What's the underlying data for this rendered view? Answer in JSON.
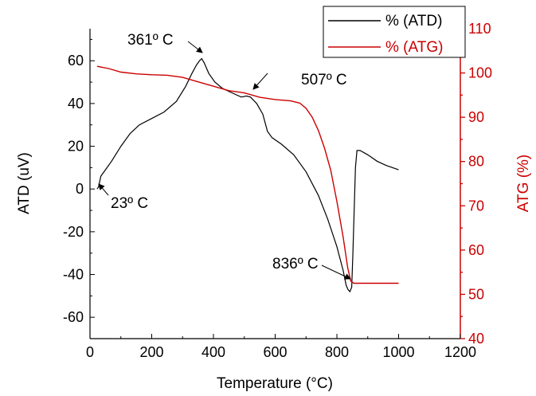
{
  "chart_data": {
    "type": "line",
    "title": "",
    "xlabel": "Temperature (°C)",
    "ylabel_left": "ATD (uV)",
    "ylabel_right": "ATG (%)",
    "xlim": [
      0,
      1200
    ],
    "ylim_left": [
      -70,
      75
    ],
    "ylim_right": [
      40,
      110
    ],
    "x_ticks": [
      "0",
      "200",
      "400",
      "600",
      "800",
      "1000",
      "1200"
    ],
    "y_left_ticks": [
      "-60",
      "-40",
      "-20",
      "0",
      "20",
      "40",
      "60"
    ],
    "y_right_ticks": [
      "40",
      "50",
      "60",
      "70",
      "80",
      "90",
      "100",
      "110"
    ],
    "grid": false,
    "legend_position": "top-right",
    "series": [
      {
        "name": "% (ATD)",
        "axis": "left",
        "color": "#000000",
        "points": [
          [
            23,
            0
          ],
          [
            28,
            1
          ],
          [
            35,
            6
          ],
          [
            50,
            9
          ],
          [
            70,
            13
          ],
          [
            100,
            20
          ],
          [
            130,
            26
          ],
          [
            160,
            30
          ],
          [
            200,
            33
          ],
          [
            240,
            36
          ],
          [
            280,
            41
          ],
          [
            310,
            48
          ],
          [
            330,
            54
          ],
          [
            345,
            58
          ],
          [
            355,
            60
          ],
          [
            362,
            61
          ],
          [
            370,
            59
          ],
          [
            385,
            54
          ],
          [
            405,
            50
          ],
          [
            430,
            47
          ],
          [
            460,
            45
          ],
          [
            490,
            43
          ],
          [
            507,
            43.5
          ],
          [
            520,
            43
          ],
          [
            540,
            40
          ],
          [
            560,
            35
          ],
          [
            575,
            27
          ],
          [
            590,
            24
          ],
          [
            620,
            21
          ],
          [
            660,
            16
          ],
          [
            700,
            8
          ],
          [
            740,
            -3
          ],
          [
            770,
            -14
          ],
          [
            800,
            -27
          ],
          [
            820,
            -38
          ],
          [
            830,
            -45
          ],
          [
            836,
            -47
          ],
          [
            842,
            -48
          ],
          [
            848,
            -46
          ],
          [
            852,
            -30
          ],
          [
            856,
            -10
          ],
          [
            860,
            10
          ],
          [
            865,
            18
          ],
          [
            875,
            18
          ],
          [
            900,
            16
          ],
          [
            930,
            13
          ],
          [
            960,
            11
          ],
          [
            990,
            9.5
          ],
          [
            1000,
            9
          ]
        ]
      },
      {
        "name": "% (ATG)",
        "axis": "right",
        "color": "#cc0000",
        "points": [
          [
            23,
            101.5
          ],
          [
            60,
            101
          ],
          [
            100,
            100.2
          ],
          [
            150,
            99.8
          ],
          [
            200,
            99.6
          ],
          [
            250,
            99.5
          ],
          [
            300,
            99
          ],
          [
            350,
            98
          ],
          [
            400,
            97
          ],
          [
            450,
            96
          ],
          [
            500,
            95.5
          ],
          [
            550,
            94.5
          ],
          [
            600,
            94
          ],
          [
            650,
            93.7
          ],
          [
            680,
            93.2
          ],
          [
            700,
            92
          ],
          [
            720,
            90
          ],
          [
            740,
            87
          ],
          [
            760,
            83
          ],
          [
            780,
            78
          ],
          [
            800,
            71
          ],
          [
            820,
            63
          ],
          [
            835,
            56
          ],
          [
            845,
            53
          ],
          [
            855,
            52.5
          ],
          [
            900,
            52.5
          ],
          [
            1000,
            52.5
          ]
        ]
      }
    ],
    "annotations": [
      {
        "text": "361º C",
        "x": 361,
        "y": 61,
        "axis": "left"
      },
      {
        "text": "507º C",
        "x": 507,
        "y": 43.5,
        "axis": "left"
      },
      {
        "text": "23º C",
        "x": 23,
        "y": 0,
        "axis": "left"
      },
      {
        "text": "836º C",
        "x": 836,
        "y": -47,
        "axis": "left"
      }
    ]
  }
}
